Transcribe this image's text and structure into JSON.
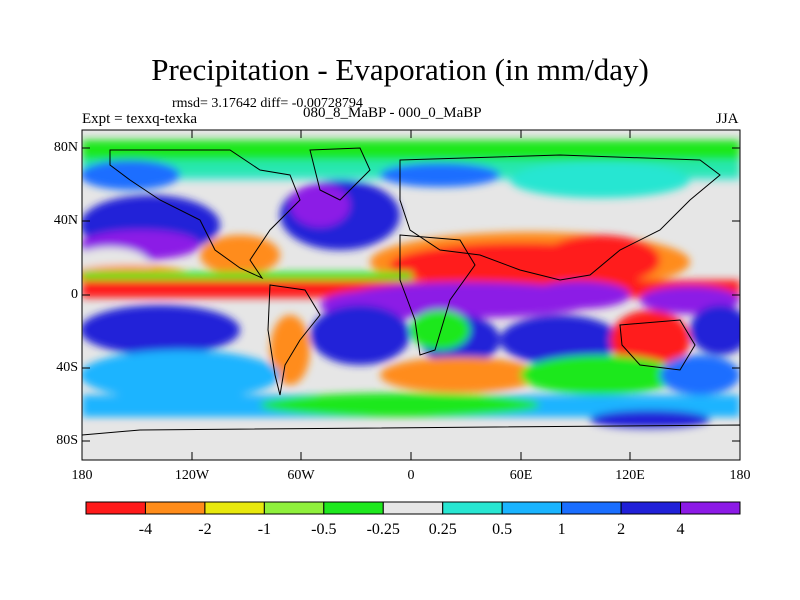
{
  "header": {
    "title": "Precipitation - Evaporation (in mm/day)",
    "subtitle": "rmsd= 3.17642 diff= -0.00728794",
    "left_label": "Expt = texxq-texka",
    "center_label": "080_8_MaBP - 000_0_MaBP",
    "right_label": "JJA"
  },
  "map": {
    "lat_labels": [
      "80N",
      "40N",
      "0",
      "40S",
      "80S"
    ],
    "lon_labels": [
      "180",
      "120W",
      "60W",
      "0",
      "60E",
      "120E",
      "180"
    ]
  },
  "colorbar": {
    "colors": [
      "#ff1a1a",
      "#ff8c1a",
      "#e8e80d",
      "#8ff03c",
      "#1ee81e",
      "#e6e6e6",
      "#28e6d2",
      "#1ab4ff",
      "#1a6eff",
      "#2020d8",
      "#8c1ae6"
    ],
    "labels": [
      "-4",
      "-2",
      "-1",
      "-0.5",
      "-0.25",
      "0.25",
      "0.5",
      "1",
      "2",
      "4"
    ]
  }
}
